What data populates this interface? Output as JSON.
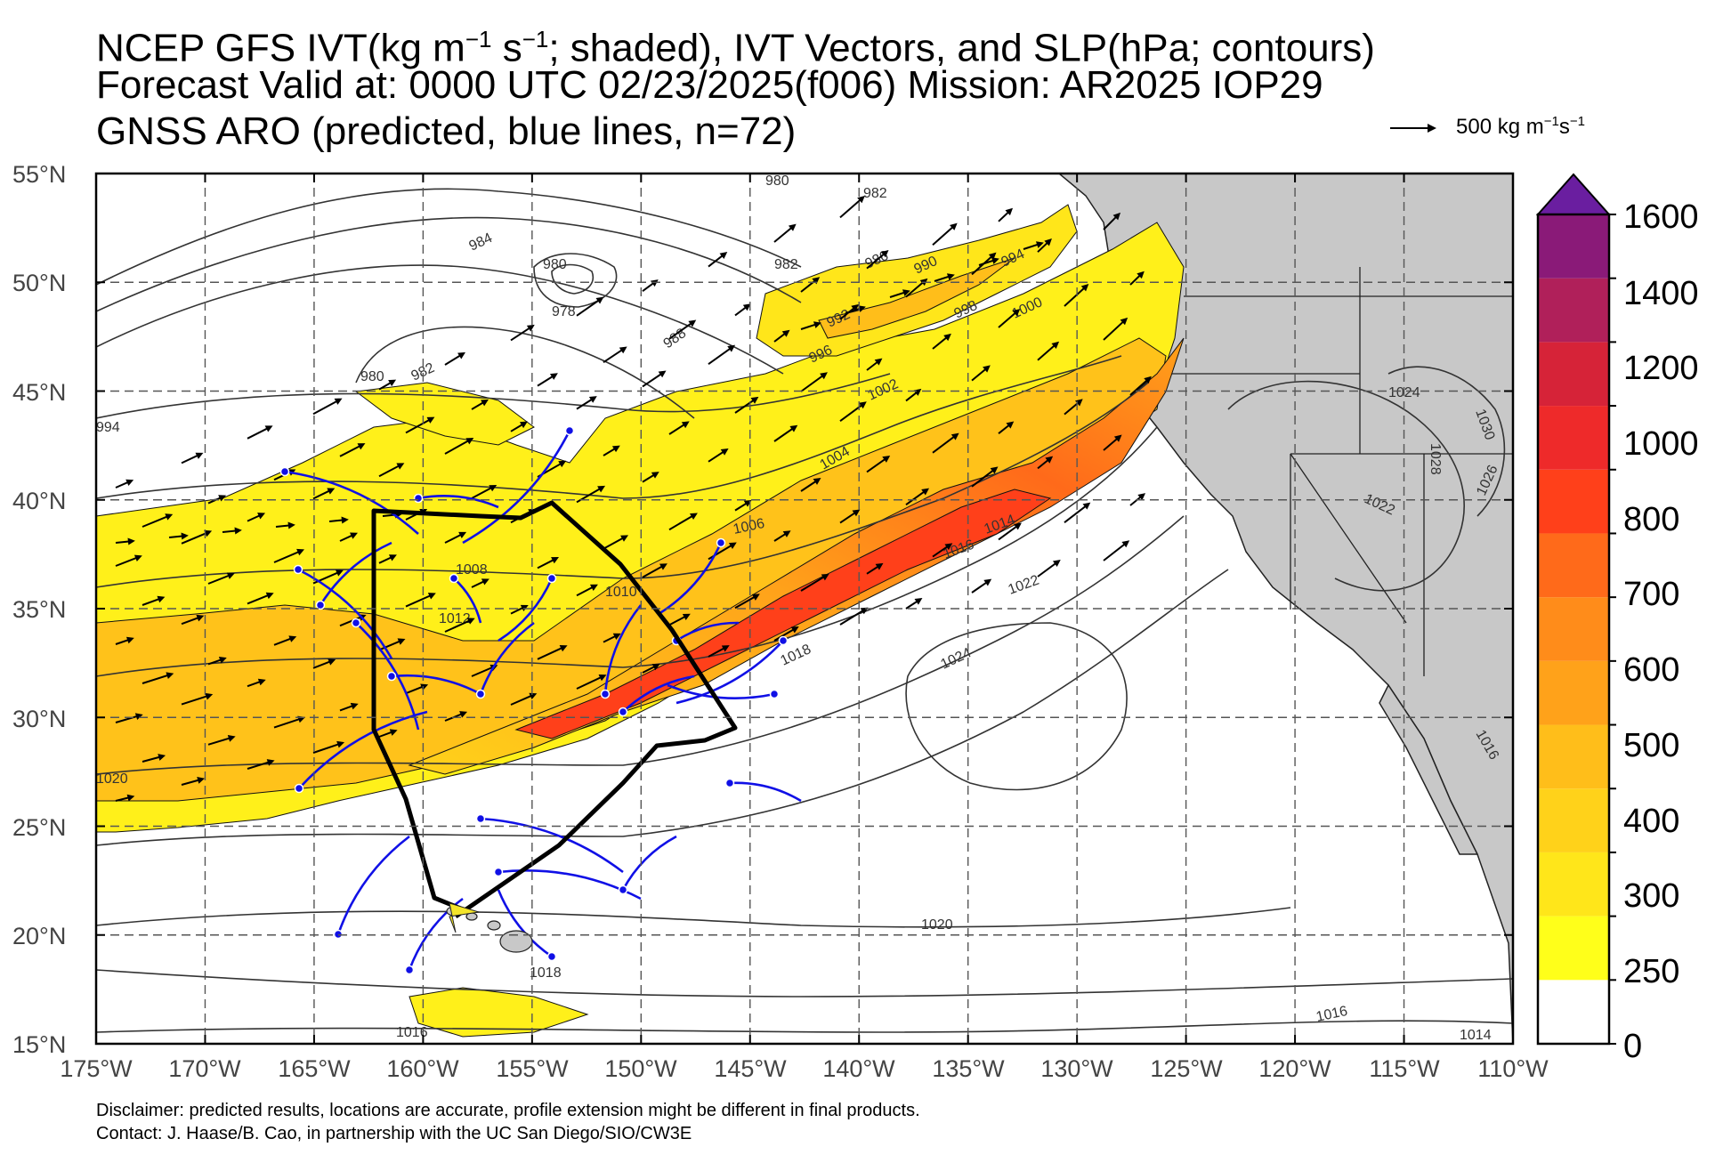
{
  "title": {
    "line1_prefix": "NCEP GFS IVT(kg m",
    "line1_exp1": "−1",
    "line1_mid": " s",
    "line1_exp2": "−1",
    "line1_suffix": "; shaded), IVT Vectors, and SLP(hPa; contours)",
    "line2": "Forecast Valid at: 0000 UTC 02/23/2025(f006) Mission: AR2025 IOP29",
    "line3": "GNSS ARO (predicted, blue lines, n=72)"
  },
  "reference_vector": {
    "value": "500 kg m",
    "exp1": "−1",
    "s": "s",
    "exp2": "−1"
  },
  "map": {
    "lon_ticks": [
      "175°W",
      "170°W",
      "165°W",
      "160°W",
      "155°W",
      "150°W",
      "145°W",
      "140°W",
      "135°W",
      "130°W",
      "125°W",
      "120°W",
      "115°W",
      "110°W"
    ],
    "lat_ticks": [
      "55°N",
      "50°N",
      "45°N",
      "40°N",
      "35°N",
      "30°N",
      "25°N",
      "20°N",
      "15°N"
    ],
    "slp_contour_labels": [
      "980",
      "982",
      "984",
      "980",
      "978",
      "982",
      "986",
      "990",
      "994",
      "998",
      "1000",
      "988",
      "992",
      "996",
      "1002",
      "980",
      "982",
      "994",
      "1004",
      "1006",
      "1008",
      "1010",
      "1012",
      "1014",
      "1016",
      "1022",
      "1018",
      "1024",
      "1020",
      "1020",
      "1018",
      "1016",
      "1016",
      "1024",
      "1028",
      "1030",
      "1026",
      "1022",
      "1016",
      "1014"
    ],
    "colors": {
      "ocean": "#ffffff",
      "land": "#c8c8c8",
      "flight_track": "#000000",
      "aro_profiles": "#1010e6",
      "grid": "#555555"
    }
  },
  "colorbar": {
    "ticks": [
      "1600",
      "1400",
      "1200",
      "1000",
      "800",
      "700",
      "600",
      "500",
      "400",
      "300",
      "250",
      "0"
    ],
    "colors": [
      "#ffffff",
      "#ffff1a",
      "#ffe61a",
      "#ffd21a",
      "#ffbe1a",
      "#ffa21a",
      "#ff8c1a",
      "#ff6a1a",
      "#ff401a",
      "#ee2a2a",
      "#d62338",
      "#b0205a",
      "#8a1a78",
      "#6a1ea0"
    ]
  },
  "footer": {
    "disclaimer": "Disclaimer: predicted results, locations are accurate, profile extension might be different in final products.",
    "contact": "Contact: J. Haase/B. Cao, in partnership with the UC San Diego/SIO/CW3E"
  }
}
